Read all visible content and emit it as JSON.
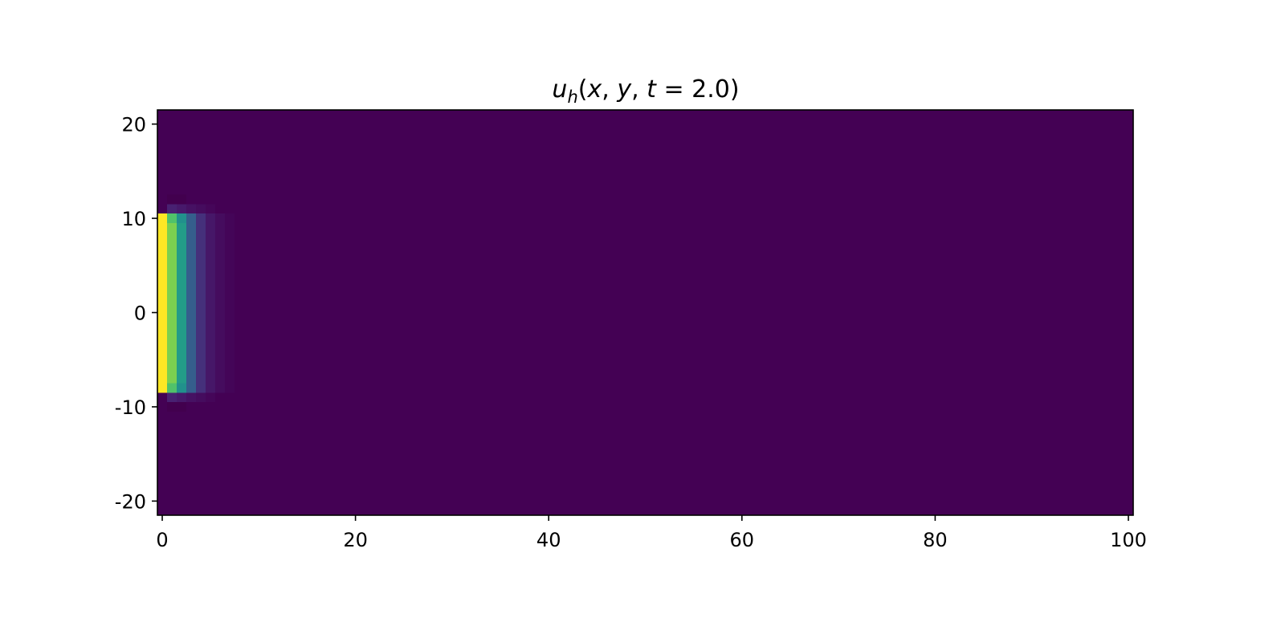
{
  "chart_data": {
    "type": "heatmap",
    "title": {
      "u": "u",
      "sub": "h",
      "args_open": "(",
      "x": "x",
      "sep1": ", ",
      "y": "y",
      "sep2": ", ",
      "t": "t",
      "eq": " = ",
      "tval": "2.0",
      "close": ")"
    },
    "xlabel": "",
    "ylabel": "",
    "xlim": [
      -0.5,
      100.5
    ],
    "ylim": [
      -21.5,
      21.5
    ],
    "xticks": [
      0,
      20,
      40,
      60,
      80,
      100
    ],
    "xtick_labels": [
      "0",
      "20",
      "40",
      "60",
      "80",
      "100"
    ],
    "yticks": [
      20,
      10,
      0,
      -10,
      -20
    ],
    "ytick_labels": [
      "20",
      "10",
      "0",
      "-10",
      "-20"
    ],
    "colormap": "viridis",
    "background_value": 0.0,
    "cells": [
      {
        "x": 0,
        "y0": -8,
        "y1": 10,
        "value": 1.0
      },
      {
        "x": 1,
        "y0": -7,
        "y1": 9,
        "value": 0.8
      },
      {
        "x": 1,
        "y0": 10,
        "y1": 10,
        "value": 0.72
      },
      {
        "x": 1,
        "y0": -8,
        "y1": -8,
        "value": 0.72
      },
      {
        "x": 2,
        "y0": -7,
        "y1": 9,
        "value": 0.55
      },
      {
        "x": 2,
        "y0": 10,
        "y1": 10,
        "value": 0.5
      },
      {
        "x": 2,
        "y0": -8,
        "y1": -8,
        "value": 0.5
      },
      {
        "x": 3,
        "y0": -8,
        "y1": 10,
        "value": 0.3
      },
      {
        "x": 4,
        "y0": -8,
        "y1": 10,
        "value": 0.16
      },
      {
        "x": 5,
        "y0": -8,
        "y1": 10,
        "value": 0.08
      },
      {
        "x": 6,
        "y0": -8,
        "y1": 10,
        "value": 0.04
      },
      {
        "x": 7,
        "y0": -8,
        "y1": 10,
        "value": 0.015
      },
      {
        "x": 1,
        "y0": 11,
        "y1": 11,
        "value": 0.12
      },
      {
        "x": 2,
        "y0": 11,
        "y1": 11,
        "value": 0.09
      },
      {
        "x": 3,
        "y0": 11,
        "y1": 11,
        "value": 0.06
      },
      {
        "x": 4,
        "y0": 11,
        "y1": 11,
        "value": 0.04
      },
      {
        "x": 5,
        "y0": 11,
        "y1": 11,
        "value": 0.02
      },
      {
        "x": 1,
        "y0": -9,
        "y1": -9,
        "value": 0.12
      },
      {
        "x": 2,
        "y0": -9,
        "y1": -9,
        "value": 0.09
      },
      {
        "x": 3,
        "y0": -9,
        "y1": -9,
        "value": 0.06
      },
      {
        "x": 4,
        "y0": -9,
        "y1": -9,
        "value": 0.04
      },
      {
        "x": 5,
        "y0": -9,
        "y1": -9,
        "value": 0.02
      },
      {
        "x": 1,
        "y0": 12,
        "y1": 12,
        "value": -0.04
      },
      {
        "x": 2,
        "y0": 12,
        "y1": 12,
        "value": -0.04
      },
      {
        "x": 1,
        "y0": -10,
        "y1": -10,
        "value": -0.04
      },
      {
        "x": 2,
        "y0": -10,
        "y1": -10,
        "value": -0.04
      }
    ]
  }
}
